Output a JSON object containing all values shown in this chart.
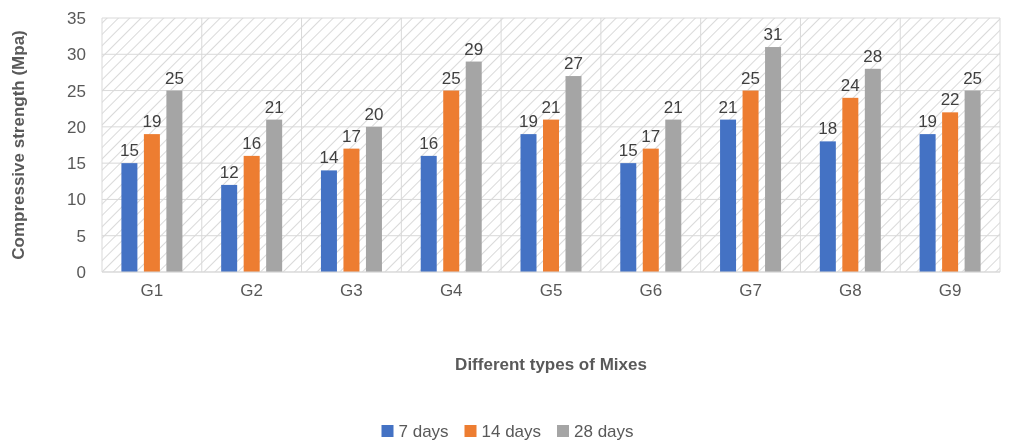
{
  "chart_data": {
    "type": "bar",
    "xlabel": "Different types of Mixes",
    "ylabel": "Compressive strength (Mpa)",
    "categories": [
      "G1",
      "G2",
      "G3",
      "G4",
      "G5",
      "G6",
      "G7",
      "G8",
      "G9"
    ],
    "series": [
      {
        "name": "7 days",
        "color": "#4472c4",
        "values": [
          15,
          12,
          14,
          16,
          19,
          15,
          21,
          18,
          19
        ]
      },
      {
        "name": "14 days",
        "color": "#ed7d31",
        "values": [
          19,
          16,
          17,
          25,
          21,
          17,
          25,
          24,
          22
        ]
      },
      {
        "name": "28 days",
        "color": "#a5a5a5",
        "values": [
          25,
          21,
          20,
          29,
          27,
          21,
          31,
          28,
          25
        ]
      }
    ],
    "ylim": [
      0,
      35
    ],
    "yticks": [
      0,
      5,
      10,
      15,
      20,
      25,
      30,
      35
    ],
    "grid": true,
    "legend": "bottom",
    "data_labels": true
  }
}
